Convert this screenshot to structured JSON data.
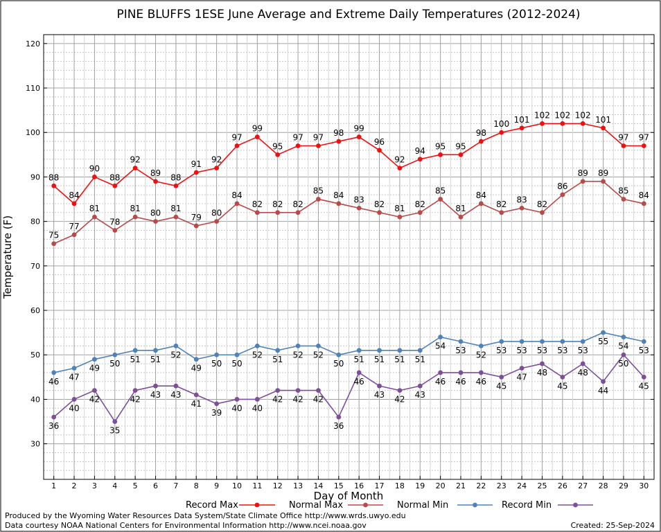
{
  "chart_data": {
    "type": "line",
    "title": "PINE BLUFFS 1ESE June Average and Extreme Daily Temperatures (2012-2024)",
    "xlabel": "Day of Month",
    "ylabel": "Temperature (F)",
    "ylim": [
      22,
      122
    ],
    "yticks": [
      30,
      40,
      50,
      60,
      70,
      80,
      90,
      100,
      110,
      120
    ],
    "x": [
      1,
      2,
      3,
      4,
      5,
      6,
      7,
      8,
      9,
      10,
      11,
      12,
      13,
      14,
      15,
      16,
      17,
      18,
      19,
      20,
      21,
      22,
      23,
      24,
      25,
      26,
      27,
      28,
      29,
      30
    ],
    "grid": true,
    "legend_position": "bottom",
    "series": [
      {
        "name": "Record Max",
        "color": "#ee1111",
        "label_pos": "above",
        "values": [
          88,
          84,
          90,
          88,
          92,
          89,
          88,
          91,
          92,
          97,
          99,
          95,
          97,
          97,
          98,
          99,
          96,
          92,
          94,
          95,
          95,
          98,
          100,
          101,
          102,
          102,
          102,
          101,
          97,
          97
        ]
      },
      {
        "name": "Normal Max",
        "color": "#b84a4a",
        "label_pos": "above",
        "values": [
          75,
          77,
          81,
          78,
          81,
          80,
          81,
          79,
          80,
          84,
          82,
          82,
          82,
          85,
          84,
          83,
          82,
          81,
          82,
          85,
          81,
          84,
          82,
          83,
          82,
          86,
          89,
          89,
          85,
          84
        ]
      },
      {
        "name": "Normal Min",
        "color": "#4f82b8",
        "label_pos": "below",
        "values": [
          46,
          47,
          49,
          50,
          51,
          51,
          52,
          49,
          50,
          50,
          52,
          51,
          52,
          52,
          50,
          51,
          51,
          51,
          51,
          54,
          53,
          52,
          53,
          53,
          53,
          53,
          53,
          55,
          54,
          53
        ]
      },
      {
        "name": "Record Min",
        "color": "#7e4f98",
        "label_pos": "below",
        "values": [
          36,
          40,
          42,
          35,
          42,
          43,
          43,
          41,
          39,
          40,
          40,
          42,
          42,
          42,
          36,
          46,
          43,
          42,
          43,
          46,
          46,
          46,
          45,
          47,
          48,
          45,
          48,
          44,
          50,
          45
        ]
      }
    ]
  },
  "footer": {
    "line1": "Produced by the Wyoming Water Resources Data System/State Climate Office http://www.wrds.uwyo.edu",
    "line2": "Data courtesy NOAA National Centers for Environmental Information http://www.ncei.noaa.gov",
    "created": "Created:  25-Sep-2024"
  }
}
